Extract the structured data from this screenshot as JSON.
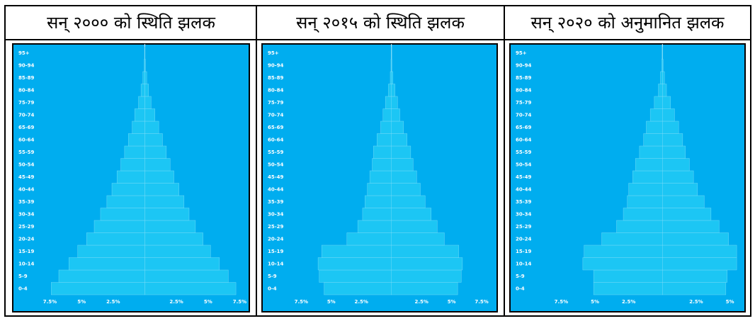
{
  "chart_data": [
    {
      "type": "pyramid",
      "title": "सन् २००० को स्थिति झलक",
      "categories": [
        "0-4",
        "5-9",
        "10-14",
        "15-19",
        "20-24",
        "25-29",
        "30-34",
        "35-39",
        "40-44",
        "45-49",
        "50-54",
        "55-59",
        "60-64",
        "65-69",
        "70-74",
        "75-79",
        "80-84",
        "85-89",
        "90-94",
        "95+"
      ],
      "series": [
        {
          "color": "#1cc6f4",
          "values": [
            7.4,
            6.8,
            6.0,
            5.3,
            4.6,
            4.0,
            3.5,
            3.0,
            2.6,
            2.2,
            1.9,
            1.6,
            1.3,
            1.0,
            0.8,
            0.5,
            0.3,
            0.15,
            0.05,
            0.02
          ]
        },
        {
          "color": "#1cc6f4",
          "values": [
            7.2,
            6.6,
            5.9,
            5.2,
            4.6,
            4.0,
            3.5,
            3.1,
            2.7,
            2.3,
            2.0,
            1.7,
            1.4,
            1.1,
            0.8,
            0.5,
            0.3,
            0.15,
            0.05,
            0.02
          ]
        }
      ],
      "xlim": [
        -8.2,
        7.7
      ],
      "xticks": [
        {
          "value": -7.5,
          "label": "7.5%"
        },
        {
          "value": -5,
          "label": "5%"
        },
        {
          "value": -2.5,
          "label": "2.5%"
        },
        {
          "value": 2.5,
          "label": "2.5%"
        },
        {
          "value": 5,
          "label": "5%"
        },
        {
          "value": 7.5,
          "label": "7.5%"
        }
      ]
    },
    {
      "type": "pyramid",
      "title": "सन् २०१५ को स्थिति झलक",
      "categories": [
        "0-4",
        "5-9",
        "10-14",
        "15-19",
        "20-24",
        "25-29",
        "30-34",
        "35-39",
        "40-44",
        "45-49",
        "50-54",
        "55-59",
        "60-64",
        "65-69",
        "70-74",
        "75-79",
        "80-84",
        "85-89",
        "90-94",
        "95+"
      ],
      "series": [
        {
          "color": "#1cc6f4",
          "values": [
            5.6,
            6.0,
            6.1,
            5.8,
            3.7,
            2.8,
            2.4,
            2.2,
            2.0,
            1.8,
            1.6,
            1.5,
            1.2,
            0.9,
            0.7,
            0.5,
            0.25,
            0.1,
            0.04,
            0.02
          ]
        },
        {
          "color": "#1cc6f4",
          "values": [
            5.5,
            5.8,
            5.9,
            5.6,
            4.4,
            3.8,
            3.3,
            2.8,
            2.4,
            2.1,
            1.8,
            1.6,
            1.3,
            1.0,
            0.7,
            0.5,
            0.3,
            0.12,
            0.04,
            0.02
          ]
        }
      ],
      "xlim": [
        -8.4,
        8.2
      ],
      "xticks": [
        {
          "value": -7.5,
          "label": "7.5%"
        },
        {
          "value": -5,
          "label": "5%"
        },
        {
          "value": -2.5,
          "label": "2.5%"
        },
        {
          "value": 2.5,
          "label": "2.5%"
        },
        {
          "value": 5,
          "label": "5%"
        },
        {
          "value": 7.5,
          "label": "7.5%"
        }
      ]
    },
    {
      "type": "pyramid",
      "title": "सन् २०२० को अनुमानित झलक",
      "categories": [
        "0-4",
        "5-9",
        "10-14",
        "15-19",
        "20-24",
        "25-29",
        "30-34",
        "35-39",
        "40-44",
        "45-49",
        "50-54",
        "55-59",
        "60-64",
        "65-69",
        "70-74",
        "75-79",
        "80-84",
        "85-89",
        "90-94",
        "95+"
      ],
      "series": [
        {
          "color": "#1cc6f4",
          "values": [
            5.1,
            5.1,
            5.9,
            5.8,
            4.5,
            3.4,
            2.9,
            2.6,
            2.5,
            2.2,
            2.0,
            1.7,
            1.4,
            1.2,
            0.9,
            0.6,
            0.3,
            0.15,
            0.05,
            0.02
          ]
        },
        {
          "color": "#1cc6f4",
          "values": [
            4.7,
            4.8,
            5.5,
            5.5,
            4.9,
            4.2,
            3.6,
            3.1,
            2.6,
            2.3,
            2.0,
            1.7,
            1.5,
            1.2,
            0.9,
            0.6,
            0.3,
            0.15,
            0.05,
            0.02
          ]
        }
      ],
      "xlim": [
        -9.2,
        5.6
      ],
      "xticks": [
        {
          "value": -7.5,
          "label": "7.5%"
        },
        {
          "value": -5,
          "label": "5%"
        },
        {
          "value": -2.5,
          "label": "2.5%"
        },
        {
          "value": 2.5,
          "label": "2.5%"
        },
        {
          "value": 5,
          "label": "5%"
        }
      ]
    }
  ]
}
